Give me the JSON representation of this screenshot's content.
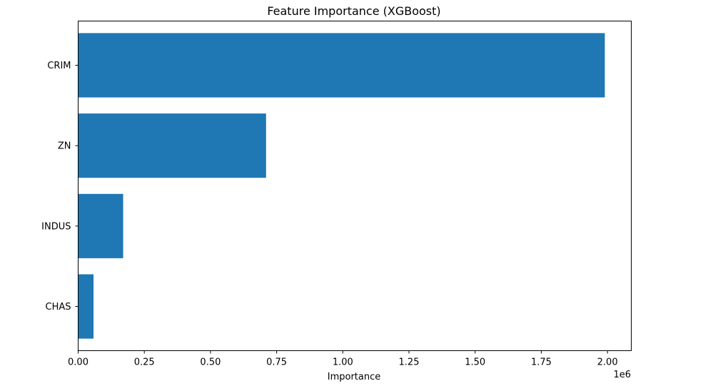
{
  "chart_data": {
    "type": "bar",
    "orientation": "horizontal",
    "title": "Feature Importance (XGBoost)",
    "xlabel": "Importance",
    "ylabel": "",
    "x_offset_label": "1e6",
    "categories": [
      "CRIM",
      "ZN",
      "INDUS",
      "CHAS"
    ],
    "values": [
      1990000,
      710000,
      170000,
      58000
    ],
    "xlim": [
      0,
      2090000
    ],
    "xticks": [
      0,
      250000,
      500000,
      750000,
      1000000,
      1250000,
      1500000,
      1750000,
      2000000
    ],
    "xtick_labels": [
      "0.00",
      "0.25",
      "0.50",
      "0.75",
      "1.00",
      "1.25",
      "1.50",
      "1.75",
      "2.00"
    ],
    "bar_color": "#1f77b4",
    "grid": false,
    "legend": "none"
  }
}
